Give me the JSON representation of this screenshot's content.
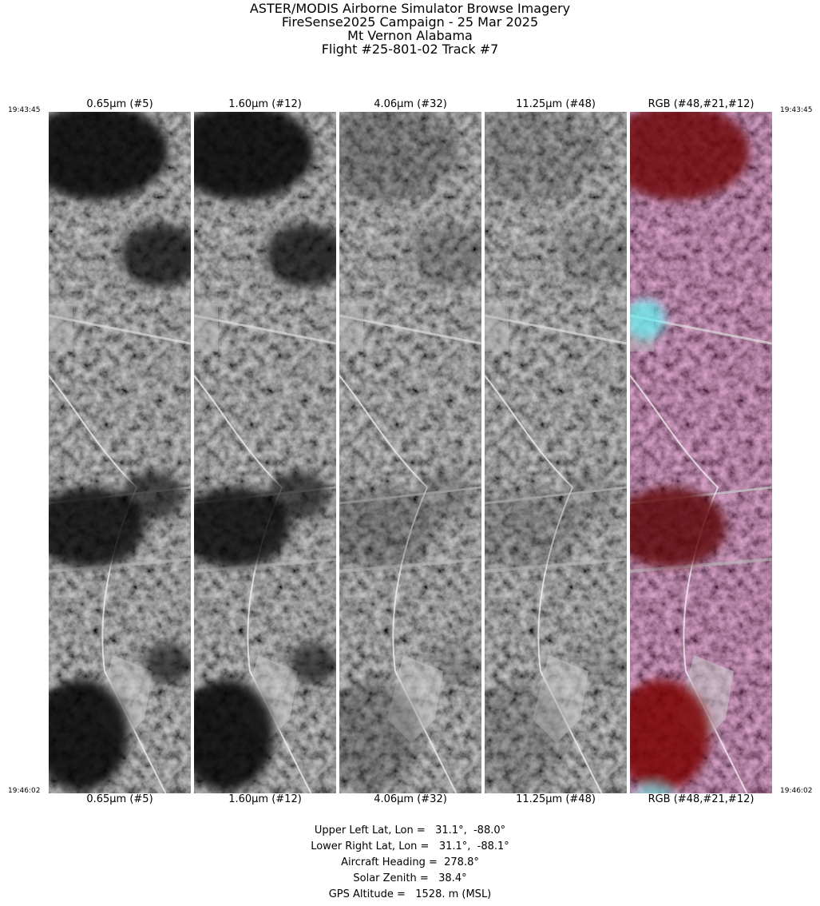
{
  "header": {
    "title": [
      "ASTER/MODIS Airborne Simulator Browse Imagery",
      "FireSense2025 Campaign - 25 Mar 2025",
      "Mt Vernon Alabama",
      "Flight #25-801-02 Track #7"
    ]
  },
  "panels": [
    "0.65μm (#5)",
    "1.60μm (#12)",
    "4.06μm (#32)",
    "11.25μm (#48)",
    "RGB (#48,#21,#12)"
  ],
  "times": {
    "start": "19:43:45",
    "end": "19:46:02"
  },
  "footer": [
    "Upper Left Lat, Lon =   31.1°,  -88.0°",
    "Lower Right Lat, Lon =   31.1°,  -88.1°",
    "Aircraft Heading =  278.8°",
    "Solar Zenith =   38.4°",
    "GPS Altitude =   1528. m (MSL)"
  ]
}
